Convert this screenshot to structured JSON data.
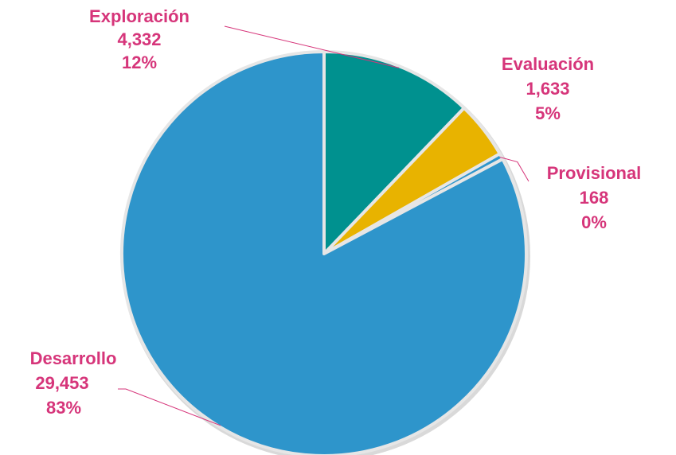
{
  "chart_data": {
    "type": "pie",
    "title": "",
    "start_angle_deg": 0,
    "direction": "clockwise",
    "label_color": "#d6357a",
    "slices": [
      {
        "category": "Exploración",
        "value": 4332,
        "percent_label": "12%",
        "value_label": "4,332",
        "color": "#00918f"
      },
      {
        "category": "Evaluación",
        "value": 1633,
        "percent_label": "5%",
        "value_label": "1,633",
        "color": "#e8b300"
      },
      {
        "category": "Provisional",
        "value": 168,
        "percent_label": "0%",
        "value_label": "168",
        "color": "#2e95cb"
      },
      {
        "category": "Desarrollo",
        "value": 29453,
        "percent_label": "83%",
        "value_label": "29,453",
        "color": "#2e95cb"
      }
    ]
  }
}
